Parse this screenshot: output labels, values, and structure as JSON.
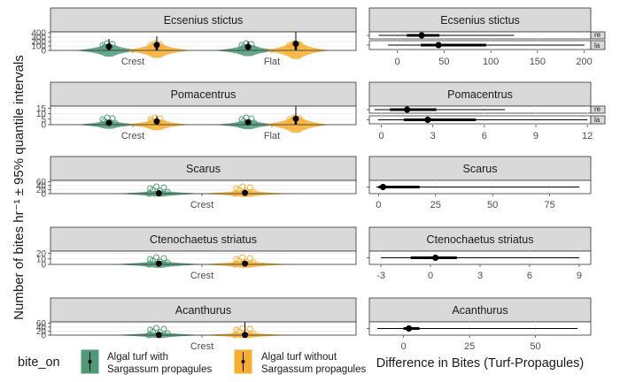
{
  "figure": {
    "y_axis_label": "Number of bites hr⁻¹ ± 95% quantile intervals",
    "legend_title": "bite_on",
    "legend_items": [
      {
        "label_line1": "Algal turf with",
        "label_line2": "Sargassum propagules",
        "color": "#4E9A78"
      },
      {
        "label_line1": "Algal turf without",
        "label_line2": "Sargassum propagules",
        "color": "#F7AE2F"
      }
    ],
    "right_x_label": "Difference in Bites (Turf-Propagules)",
    "strip_color": "#d9d9d9",
    "clipped_strip_labels": [
      "re",
      "la"
    ]
  },
  "chart_data": [
    {
      "type": "violin",
      "title": "Ecsenius stictus",
      "categories": [
        "Crest",
        "Flat"
      ],
      "yticks": [
        0,
        100,
        200,
        300,
        400
      ],
      "ylim": [
        0,
        420
      ],
      "series": [
        {
          "name": "Algal turf with Sargassum propagules",
          "color": "#4E9A78",
          "estimates": [
            90,
            80
          ],
          "upper": [
            260,
            200
          ]
        },
        {
          "name": "Algal turf without Sargassum propagules",
          "color": "#F7AE2F",
          "estimates": [
            125,
            150
          ],
          "upper": [
            320,
            420
          ]
        }
      ]
    },
    {
      "type": "violin",
      "title": "Pomacentrus",
      "categories": [
        "Crest",
        "Flat"
      ],
      "yticks": [
        0,
        5,
        10,
        15
      ],
      "ylim": [
        0,
        17
      ],
      "series": [
        {
          "name": "Algal turf with Sargassum propagules",
          "color": "#4E9A78",
          "estimates": [
            1.5,
            2
          ],
          "upper": [
            4,
            4
          ]
        },
        {
          "name": "Algal turf without Sargassum propagules",
          "color": "#F7AE2F",
          "estimates": [
            3,
            5.5
          ],
          "upper": [
            8,
            17
          ]
        }
      ]
    },
    {
      "type": "violin",
      "title": "Scarus",
      "categories": [
        "Crest"
      ],
      "yticks": [
        0,
        20,
        40,
        60
      ],
      "ylim": [
        0,
        66
      ],
      "series": [
        {
          "name": "Algal turf with Sargassum propagules",
          "color": "#4E9A78",
          "estimates": [
            2
          ],
          "upper": [
            15
          ]
        },
        {
          "name": "Algal turf without Sargassum propagules",
          "color": "#F7AE2F",
          "estimates": [
            4
          ],
          "upper": [
            20
          ]
        }
      ]
    },
    {
      "type": "violin",
      "title": "Ctenochaetus striatus",
      "categories": [
        "Crest"
      ],
      "yticks": [
        0,
        10,
        20
      ],
      "ylim": [
        0,
        24
      ],
      "series": [
        {
          "name": "Algal turf with Sargassum propagules",
          "color": "#4E9A78",
          "estimates": [
            1.5
          ],
          "upper": [
            5
          ]
        },
        {
          "name": "Algal turf without Sargassum propagules",
          "color": "#F7AE2F",
          "estimates": [
            1.5
          ],
          "upper": [
            5
          ]
        }
      ]
    },
    {
      "type": "violin",
      "title": "Acanthurus",
      "categories": [
        "Crest"
      ],
      "yticks": [
        0,
        20,
        40,
        60
      ],
      "ylim": [
        0,
        66
      ],
      "series": [
        {
          "name": "Algal turf with Sargassum propagules",
          "color": "#4E9A78",
          "estimates": [
            1
          ],
          "upper": [
            12
          ]
        },
        {
          "name": "Algal turf without Sargassum propagules",
          "color": "#F7AE2F",
          "estimates": [
            1
          ],
          "upper": [
            66
          ]
        }
      ]
    },
    {
      "type": "interval",
      "title": "Ecsenius stictus",
      "xticks": [
        0,
        50,
        100,
        150,
        200
      ],
      "xlim": [
        -30,
        207
      ],
      "rows": [
        {
          "point": 26,
          "inner": [
            10,
            45
          ],
          "outer": [
            -20,
            125
          ]
        },
        {
          "point": 44,
          "inner": [
            25,
            95
          ],
          "outer": [
            -10,
            200
          ]
        }
      ]
    },
    {
      "type": "interval",
      "title": "Pomacentrus",
      "xticks": [
        0,
        3,
        6,
        9,
        12
      ],
      "xlim": [
        -0.7,
        12.2
      ],
      "rows": [
        {
          "point": 1.5,
          "inner": [
            0.5,
            3.2
          ],
          "outer": [
            -0.4,
            7.2
          ]
        },
        {
          "point": 2.7,
          "inner": [
            1.3,
            5.5
          ],
          "outer": [
            -0.2,
            12
          ]
        }
      ]
    },
    {
      "type": "interval",
      "title": "Scarus",
      "xticks": [
        0,
        25,
        50,
        75
      ],
      "xlim": [
        -4,
        93
      ],
      "rows": [
        {
          "point": 2,
          "inner": [
            0,
            18
          ],
          "outer": [
            -1,
            88
          ]
        }
      ]
    },
    {
      "type": "interval",
      "title": "Ctenochaetus striatus",
      "xticks": [
        -3,
        0,
        3,
        6,
        9
      ],
      "xlim": [
        -3.7,
        9.7
      ],
      "rows": [
        {
          "point": 0.3,
          "inner": [
            -1.2,
            1.6
          ],
          "outer": [
            -3.0,
            9.0
          ]
        }
      ]
    },
    {
      "type": "interval",
      "title": "Acanthurus",
      "xticks": [
        0,
        25,
        50
      ],
      "xlim": [
        -13,
        71
      ],
      "rows": [
        {
          "point": 2,
          "inner": [
            0,
            6
          ],
          "outer": [
            -10,
            66
          ]
        }
      ]
    }
  ]
}
